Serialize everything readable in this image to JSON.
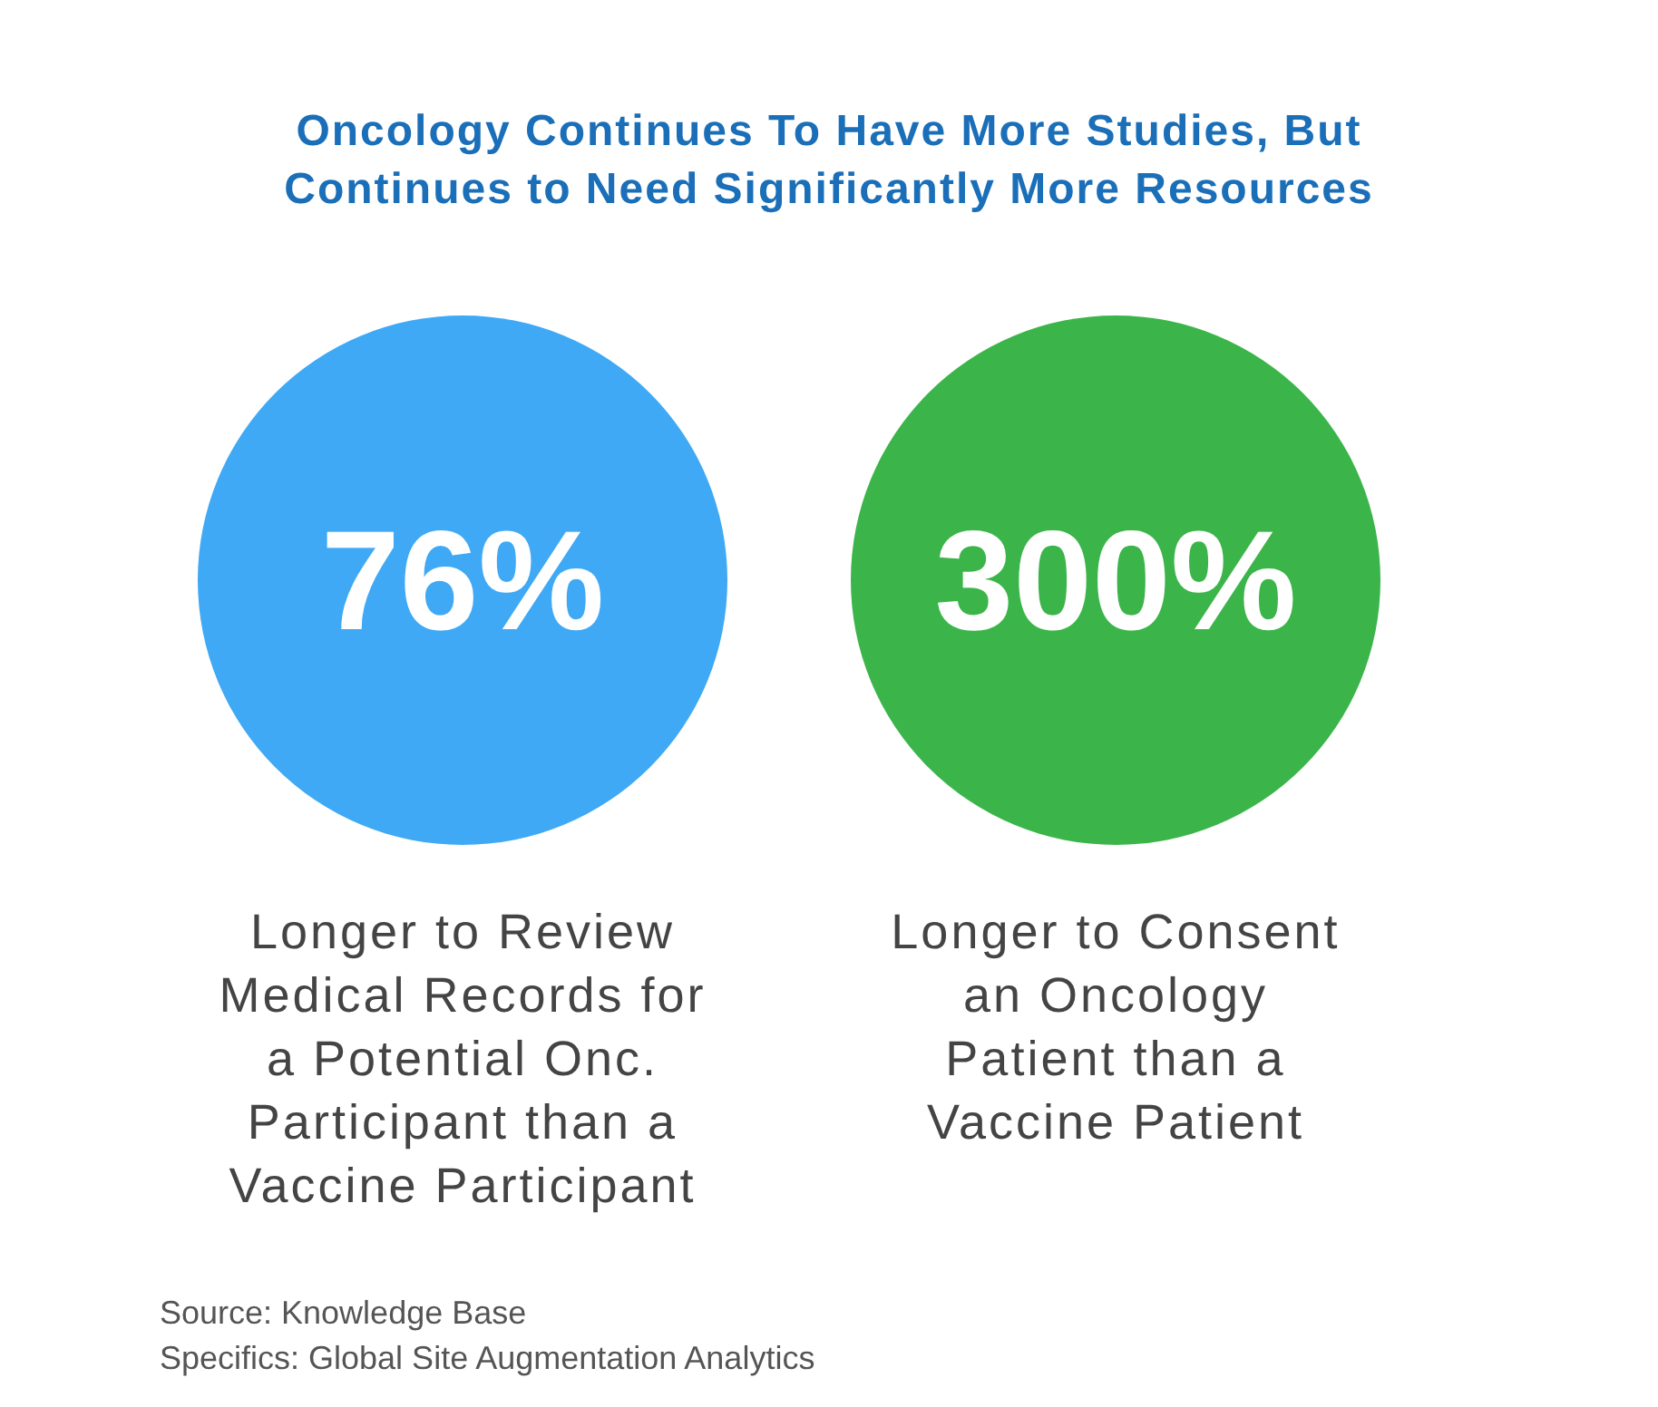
{
  "chart_data": {
    "type": "other",
    "title": "Oncology Continues To Have More Studies, But\nContinues to Need Significantly More Resources",
    "categories": [
      "Longer to Review\nMedical Records for\na Potential Onc.\nParticipant than a\nVaccine Participant",
      "Longer to Consent\nan Oncology\nPatient than a\nVaccine Patient"
    ],
    "values": [
      76,
      300
    ],
    "value_labels": [
      "76%",
      "300%"
    ],
    "colors": [
      "#3fa9f5",
      "#3bb54a"
    ],
    "annotations": [
      "Source: Knowledge Base",
      "Specifics: Global Site Augmentation Analytics"
    ]
  }
}
